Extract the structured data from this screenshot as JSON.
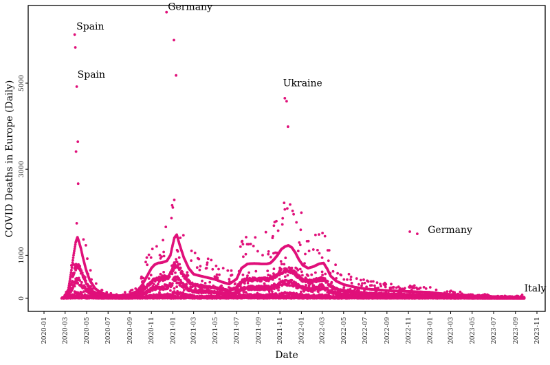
{
  "chart_data": {
    "type": "scatter",
    "title": "",
    "xlabel": "Date",
    "ylabel": "COVID Deaths in Europe (Daily)",
    "xlim": [
      "2020-01-01",
      "2023-11-01"
    ],
    "ylim": [
      -300,
      6900
    ],
    "grid": false,
    "marker_color": "#e0107a",
    "x_ticks": [
      "2020-01",
      "2020-03",
      "2020-05",
      "2020-07",
      "2020-09",
      "2020-11",
      "2021-01",
      "2021-03",
      "2021-05",
      "2021-07",
      "2021-09",
      "2021-11",
      "2022-01",
      "2022-03",
      "2022-05",
      "2022-07",
      "2022-09",
      "2022-11",
      "2023-01",
      "2023-03",
      "2023-05",
      "2023-07",
      "2023-09",
      "2023-11"
    ],
    "y_ticks": [
      0,
      1000,
      3000,
      5000
    ],
    "annotations": [
      {
        "text": "Germany",
        "x": "2020-12-18",
        "y": 6700
      },
      {
        "text": "Spain",
        "x": "2020-04-02",
        "y": 6250
      },
      {
        "text": "Spain",
        "x": "2020-04-05",
        "y": 5130
      },
      {
        "text": "Ukraine",
        "x": "2021-11-10",
        "y": 4930
      },
      {
        "text": "Germany",
        "x": "2022-12-26",
        "y": 1520
      },
      {
        "text": "Italy",
        "x": "2023-09-26",
        "y": 160
      }
    ],
    "highlight_points": [
      {
        "x": "2020-03-28",
        "y": 6130
      },
      {
        "x": "2020-03-30",
        "y": 5830
      },
      {
        "x": "2020-04-03",
        "y": 4920
      },
      {
        "x": "2020-04-06",
        "y": 3640
      },
      {
        "x": "2020-04-01",
        "y": 3410
      },
      {
        "x": "2020-12-14",
        "y": 6650
      },
      {
        "x": "2021-01-04",
        "y": 6000
      },
      {
        "x": "2021-01-10",
        "y": 5180
      },
      {
        "x": "2021-11-15",
        "y": 4650
      },
      {
        "x": "2021-11-20",
        "y": 4580
      },
      {
        "x": "2021-11-24",
        "y": 3990
      },
      {
        "x": "2022-01-01",
        "y": 1990
      },
      {
        "x": "2022-11-26",
        "y": 1500
      },
      {
        "x": "2022-11-05",
        "y": 1550
      },
      {
        "x": "2023-09-20",
        "y": 80
      }
    ],
    "series": [
      {
        "x": [
          "2020-02-25",
          "2020-03-10",
          "2020-03-18",
          "2020-03-25",
          "2020-03-31",
          "2020-04-05",
          "2020-04-10",
          "2020-04-15",
          "2020-04-22",
          "2020-04-30",
          "2020-05-10",
          "2020-05-25",
          "2020-06-10",
          "2020-07-01",
          "2020-08-01",
          "2020-09-01",
          "2020-09-20",
          "2020-10-05",
          "2020-10-20",
          "2020-11-01",
          "2020-11-10",
          "2020-11-20",
          "2020-12-01",
          "2020-12-15",
          "2020-12-25",
          "2021-01-05",
          "2021-01-12",
          "2021-01-20",
          "2021-02-01",
          "2021-02-15",
          "2021-03-01",
          "2021-03-20",
          "2021-04-10",
          "2021-05-01",
          "2021-05-20",
          "2021-06-10",
          "2021-07-01",
          "2021-07-15",
          "2021-08-01",
          "2021-08-20",
          "2021-09-10",
          "2021-09-25",
          "2021-10-05",
          "2021-10-15",
          "2021-10-25",
          "2021-11-05",
          "2021-11-15",
          "2021-11-25",
          "2021-12-05",
          "2021-12-15",
          "2021-12-25",
          "2022-01-05",
          "2022-01-20",
          "2022-02-05",
          "2022-02-20",
          "2022-03-05",
          "2022-03-15",
          "2022-03-25",
          "2022-04-10",
          "2022-05-01",
          "2022-06-01",
          "2022-07-01",
          "2022-08-01",
          "2022-09-01",
          "2022-10-01",
          "2022-11-01",
          "2022-12-01",
          "2023-01-01",
          "2023-02-01",
          "2023-03-01",
          "2023-04-01",
          "2023-05-01",
          "2023-06-01",
          "2023-07-01",
          "2023-08-01",
          "2023-09-01",
          "2023-09-26"
        ],
        "y": [
          0,
          200,
          600,
          1000,
          1300,
          1420,
          1300,
          1150,
          900,
          650,
          420,
          230,
          130,
          80,
          60,
          90,
          160,
          300,
          520,
          700,
          780,
          820,
          830,
          870,
          1000,
          1400,
          1480,
          1250,
          950,
          700,
          560,
          520,
          480,
          440,
          380,
          330,
          450,
          700,
          800,
          810,
          800,
          800,
          820,
          900,
          1000,
          1140,
          1200,
          1230,
          1180,
          1060,
          900,
          770,
          700,
          740,
          800,
          820,
          690,
          520,
          400,
          320,
          260,
          220,
          200,
          180,
          170,
          160,
          150,
          140,
          110,
          90,
          80,
          60,
          50,
          40,
          30,
          20,
          10
        ]
      }
    ]
  }
}
